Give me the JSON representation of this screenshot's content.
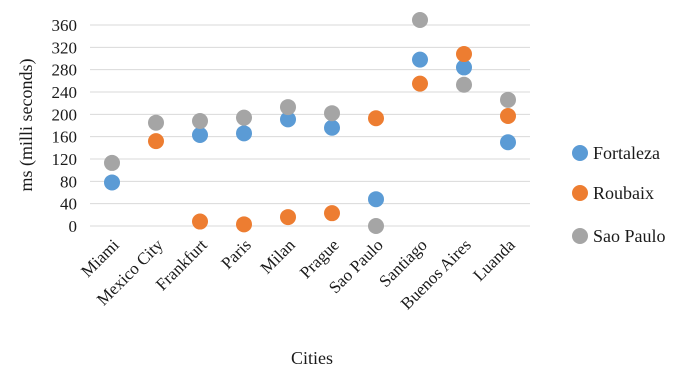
{
  "chart_data": {
    "type": "scatter",
    "title": "",
    "xlabel": "Cities",
    "ylabel": "ms (milli seconds)",
    "ylim": [
      0,
      360
    ],
    "yticks": [
      0,
      40,
      80,
      120,
      160,
      200,
      240,
      280,
      320,
      360
    ],
    "grid": "horizontal",
    "legend_position": "right",
    "categories": [
      "Miami",
      "Mexico City",
      "Frankfurt",
      "Paris",
      "Milan",
      "Prague",
      "Sao Paulo",
      "Santiago",
      "Buenos Aires",
      "Luanda"
    ],
    "series": [
      {
        "name": "Fortaleza",
        "color": "#5B9BD5",
        "values": [
          78,
          null,
          163,
          166,
          191,
          176,
          48,
          298,
          284,
          150
        ]
      },
      {
        "name": "Roubaix",
        "color": "#ED7D31",
        "values": [
          null,
          152,
          8,
          3,
          16,
          23,
          193,
          255,
          308,
          197
        ]
      },
      {
        "name": "Sao Paulo",
        "color": "#A5A5A5",
        "values": [
          113,
          185,
          188,
          194,
          213,
          202,
          0,
          369,
          253,
          226
        ]
      }
    ]
  }
}
